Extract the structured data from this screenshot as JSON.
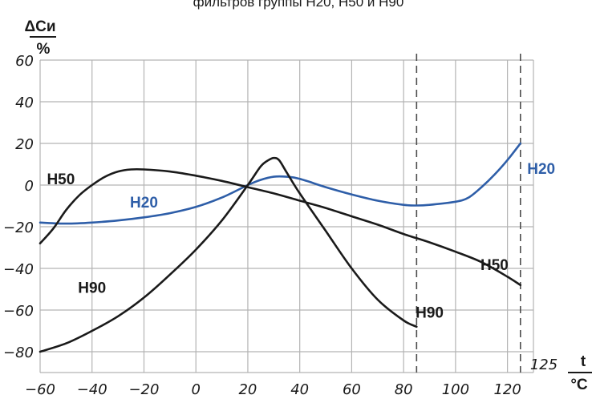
{
  "chart_data": {
    "type": "line",
    "title": "фильтров группы H20, H50 и H90",
    "y_label": "ΔCи",
    "y_unit": "%",
    "x_label": "t",
    "x_unit": "°C",
    "x_extra_tick": "125",
    "xlim": [
      -60,
      130
    ],
    "ylim": [
      -90,
      60
    ],
    "x_ticks": [
      -60,
      -40,
      -20,
      0,
      20,
      40,
      60,
      80,
      100,
      120
    ],
    "y_ticks": [
      60,
      40,
      20,
      0,
      -20,
      -40,
      -60,
      -80
    ],
    "grid": true,
    "dashed_verticals": [
      85,
      125
    ],
    "series": [
      {
        "name": "H20",
        "color": "#2e5ea8",
        "x": [
          -60,
          -50,
          -40,
          -30,
          -20,
          -10,
          0,
          10,
          20,
          25,
          30,
          35,
          40,
          50,
          60,
          70,
          80,
          85,
          90,
          100,
          105,
          110,
          115,
          120,
          125
        ],
        "y": [
          -18,
          -18.5,
          -18,
          -17,
          -15.5,
          -13.5,
          -10.5,
          -6,
          0,
          2.5,
          4,
          4,
          3,
          -1,
          -4.5,
          -7.5,
          -9.5,
          -9.8,
          -9.5,
          -8,
          -6,
          -1,
          5,
          12,
          20
        ]
      },
      {
        "name": "H50",
        "color": "#1a1a1a",
        "x": [
          -60,
          -55,
          -50,
          -45,
          -40,
          -35,
          -30,
          -25,
          -20,
          -10,
          0,
          10,
          20,
          30,
          40,
          50,
          60,
          70,
          80,
          90,
          100,
          110,
          120,
          125
        ],
        "y": [
          -28,
          -21,
          -12,
          -5,
          0,
          4,
          6.5,
          7.5,
          7.5,
          6.5,
          4.5,
          2,
          -1,
          -4,
          -7.5,
          -11,
          -15,
          -19,
          -23.5,
          -27.5,
          -32,
          -37,
          -44,
          -48
        ]
      },
      {
        "name": "H90",
        "color": "#1a1a1a",
        "x": [
          -60,
          -50,
          -40,
          -30,
          -20,
          -10,
          0,
          10,
          20,
          25,
          28,
          30,
          32,
          35,
          40,
          50,
          60,
          70,
          80,
          85
        ],
        "y": [
          -80,
          -76,
          -70,
          -63,
          -54,
          -43,
          -31,
          -17,
          0,
          9,
          12,
          13,
          12,
          6,
          -4,
          -22,
          -40,
          -55,
          -65,
          -68
        ]
      }
    ],
    "series_labels": [
      {
        "text": "H50",
        "series": "H50",
        "x": -52,
        "y": 3
      },
      {
        "text": "H20",
        "series": "H20",
        "x": -20,
        "y": -8
      },
      {
        "text": "H90",
        "series": "H90",
        "x": -40,
        "y": -49
      },
      {
        "text": "H20",
        "series": "H20",
        "x": 133,
        "y": 8
      },
      {
        "text": "H50",
        "series": "H50",
        "x": 115,
        "y": -38
      },
      {
        "text": "H90",
        "series": "H90",
        "x": 90,
        "y": -61
      }
    ]
  }
}
